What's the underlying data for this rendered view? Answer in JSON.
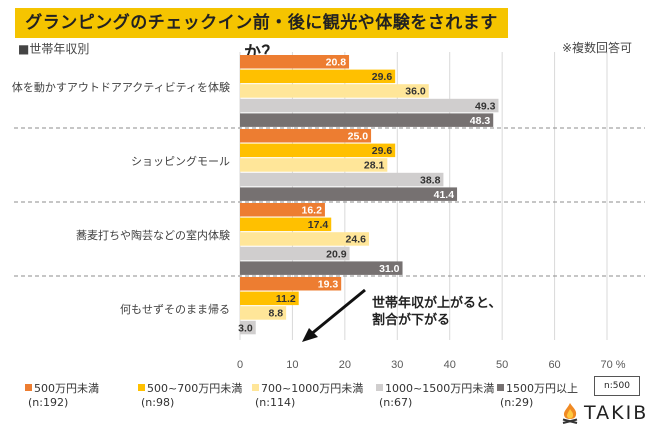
{
  "header": {
    "title": "グランピングのチェックイン前・後に観光や体験をされますか？",
    "subtitle": "■世帯年収別",
    "note": "※複数回答可"
  },
  "annotation": {
    "line1": "世帯年収が上がると、",
    "line2": "割合が下がる"
  },
  "sample": {
    "label": "n:500"
  },
  "logo": {
    "text": "TAKIBI",
    "icon": "campfire-icon"
  },
  "chart_data": {
    "type": "bar",
    "orientation": "horizontal",
    "title": "グランピングのチェックイン前・後に観光や体験をされますか？",
    "xlabel": "%",
    "ylabel": "",
    "xlim": [
      0,
      70
    ],
    "xticks": [
      0,
      10,
      20,
      30,
      40,
      50,
      60,
      70
    ],
    "xtick_labels": [
      "0",
      "10",
      "20",
      "30",
      "40",
      "50",
      "60",
      "70 %"
    ],
    "grid": true,
    "legend_position": "bottom",
    "categories": [
      "体を動かすアウトドアアクティビティを体験",
      "ショッピングモール",
      "蕎麦打ちや陶芸などの室内体験",
      "何もせずそのまま帰る"
    ],
    "series": [
      {
        "name": "500万円未満",
        "n": "(n:192)",
        "color": "#ed7d31",
        "label_color": "#ffffff",
        "values": [
          20.8,
          25.0,
          16.2,
          19.3
        ]
      },
      {
        "name": "500~700万円未満",
        "n": "(n:98)",
        "color": "#ffc000",
        "label_color": "#333333",
        "values": [
          29.6,
          29.6,
          17.4,
          11.2
        ]
      },
      {
        "name": "700~1000万円未満",
        "n": "(n:114)",
        "color": "#ffe699",
        "label_color": "#333333",
        "values": [
          36.0,
          28.1,
          24.6,
          8.8
        ]
      },
      {
        "name": "1000~1500万円未満",
        "n": "(n:67)",
        "color": "#d0cece",
        "label_color": "#333333",
        "values": [
          49.3,
          38.8,
          20.9,
          3.0
        ]
      },
      {
        "name": "1500万円以上",
        "n": "(n:29)",
        "color": "#767171",
        "label_color": "#ffffff",
        "values": [
          48.3,
          41.4,
          31.0,
          null
        ]
      }
    ]
  }
}
